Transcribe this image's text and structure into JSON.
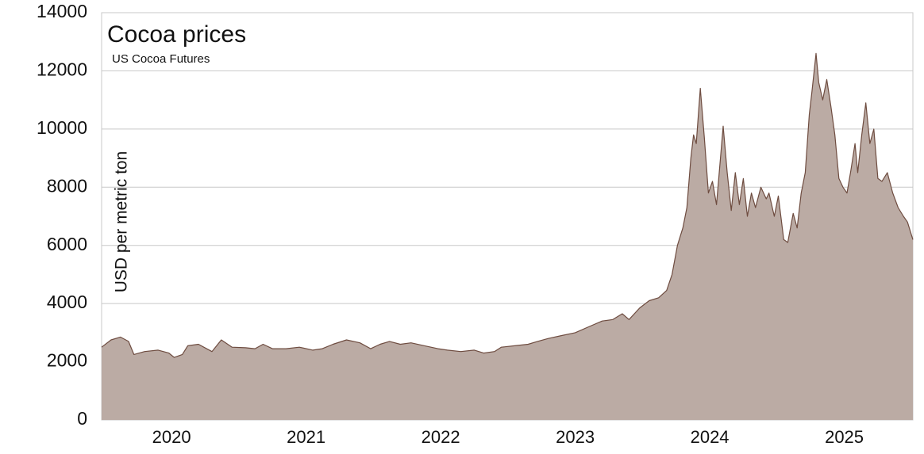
{
  "chart_data": {
    "type": "area",
    "title": "Cocoa prices",
    "subtitle": "US Cocoa Futures",
    "y_label": "USD per metric ton",
    "fill_color": "#bbaba4",
    "line_color": "#6e4c40",
    "grid": true,
    "xlim": [
      2019.48,
      2025.51
    ],
    "xticks": [
      2020,
      2021,
      2022,
      2023,
      2024,
      2025
    ],
    "ylim": [
      0,
      14000
    ],
    "yticks": [
      0,
      2000,
      4000,
      6000,
      8000,
      10000,
      12000,
      14000
    ],
    "x": [
      2019.48,
      2019.55,
      2019.62,
      2019.68,
      2019.72,
      2019.8,
      2019.9,
      2019.98,
      2020.02,
      2020.08,
      2020.12,
      2020.2,
      2020.3,
      2020.37,
      2020.45,
      2020.55,
      2020.62,
      2020.68,
      2020.75,
      2020.85,
      2020.95,
      2021.05,
      2021.12,
      2021.2,
      2021.3,
      2021.4,
      2021.48,
      2021.55,
      2021.62,
      2021.7,
      2021.78,
      2021.88,
      2021.98,
      2022.05,
      2022.15,
      2022.25,
      2022.32,
      2022.4,
      2022.45,
      2022.55,
      2022.65,
      2022.72,
      2022.8,
      2022.9,
      2023.0,
      2023.1,
      2023.2,
      2023.28,
      2023.35,
      2023.4,
      2023.48,
      2023.55,
      2023.62,
      2023.68,
      2023.72,
      2023.76,
      2023.8,
      2023.83,
      2023.86,
      2023.88,
      2023.9,
      2023.93,
      2023.96,
      2023.99,
      2024.02,
      2024.05,
      2024.08,
      2024.1,
      2024.13,
      2024.16,
      2024.19,
      2024.22,
      2024.25,
      2024.28,
      2024.31,
      2024.34,
      2024.38,
      2024.42,
      2024.44,
      2024.48,
      2024.51,
      2024.55,
      2024.58,
      2024.62,
      2024.65,
      2024.68,
      2024.71,
      2024.74,
      2024.76,
      2024.79,
      2024.81,
      2024.84,
      2024.87,
      2024.9,
      2024.93,
      2024.96,
      2024.99,
      2025.02,
      2025.05,
      2025.08,
      2025.1,
      2025.13,
      2025.16,
      2025.19,
      2025.22,
      2025.25,
      2025.28,
      2025.32,
      2025.36,
      2025.4,
      2025.44,
      2025.47,
      2025.51
    ],
    "values": [
      2500,
      2750,
      2850,
      2700,
      2250,
      2350,
      2400,
      2300,
      2150,
      2250,
      2550,
      2600,
      2350,
      2750,
      2500,
      2480,
      2450,
      2600,
      2450,
      2450,
      2500,
      2400,
      2450,
      2600,
      2750,
      2650,
      2450,
      2600,
      2700,
      2600,
      2650,
      2550,
      2450,
      2400,
      2350,
      2400,
      2300,
      2350,
      2500,
      2550,
      2600,
      2700,
      2800,
      2900,
      3000,
      3200,
      3400,
      3450,
      3650,
      3450,
      3850,
      4100,
      4200,
      4450,
      5000,
      6000,
      6600,
      7300,
      9000,
      9800,
      9500,
      11400,
      9700,
      7800,
      8200,
      7400,
      9000,
      10100,
      8500,
      7200,
      8500,
      7400,
      8300,
      7000,
      7800,
      7300,
      8000,
      7600,
      7800,
      7000,
      7700,
      6200,
      6100,
      7100,
      6600,
      7800,
      8500,
      10500,
      11300,
      12600,
      11600,
      11000,
      11700,
      10800,
      9800,
      8300,
      8000,
      7800,
      8600,
      9500,
      8500,
      9800,
      10900,
      9500,
      10000,
      8300,
      8200,
      8500,
      7800,
      7300,
      7000,
      6800,
      6200
    ]
  }
}
